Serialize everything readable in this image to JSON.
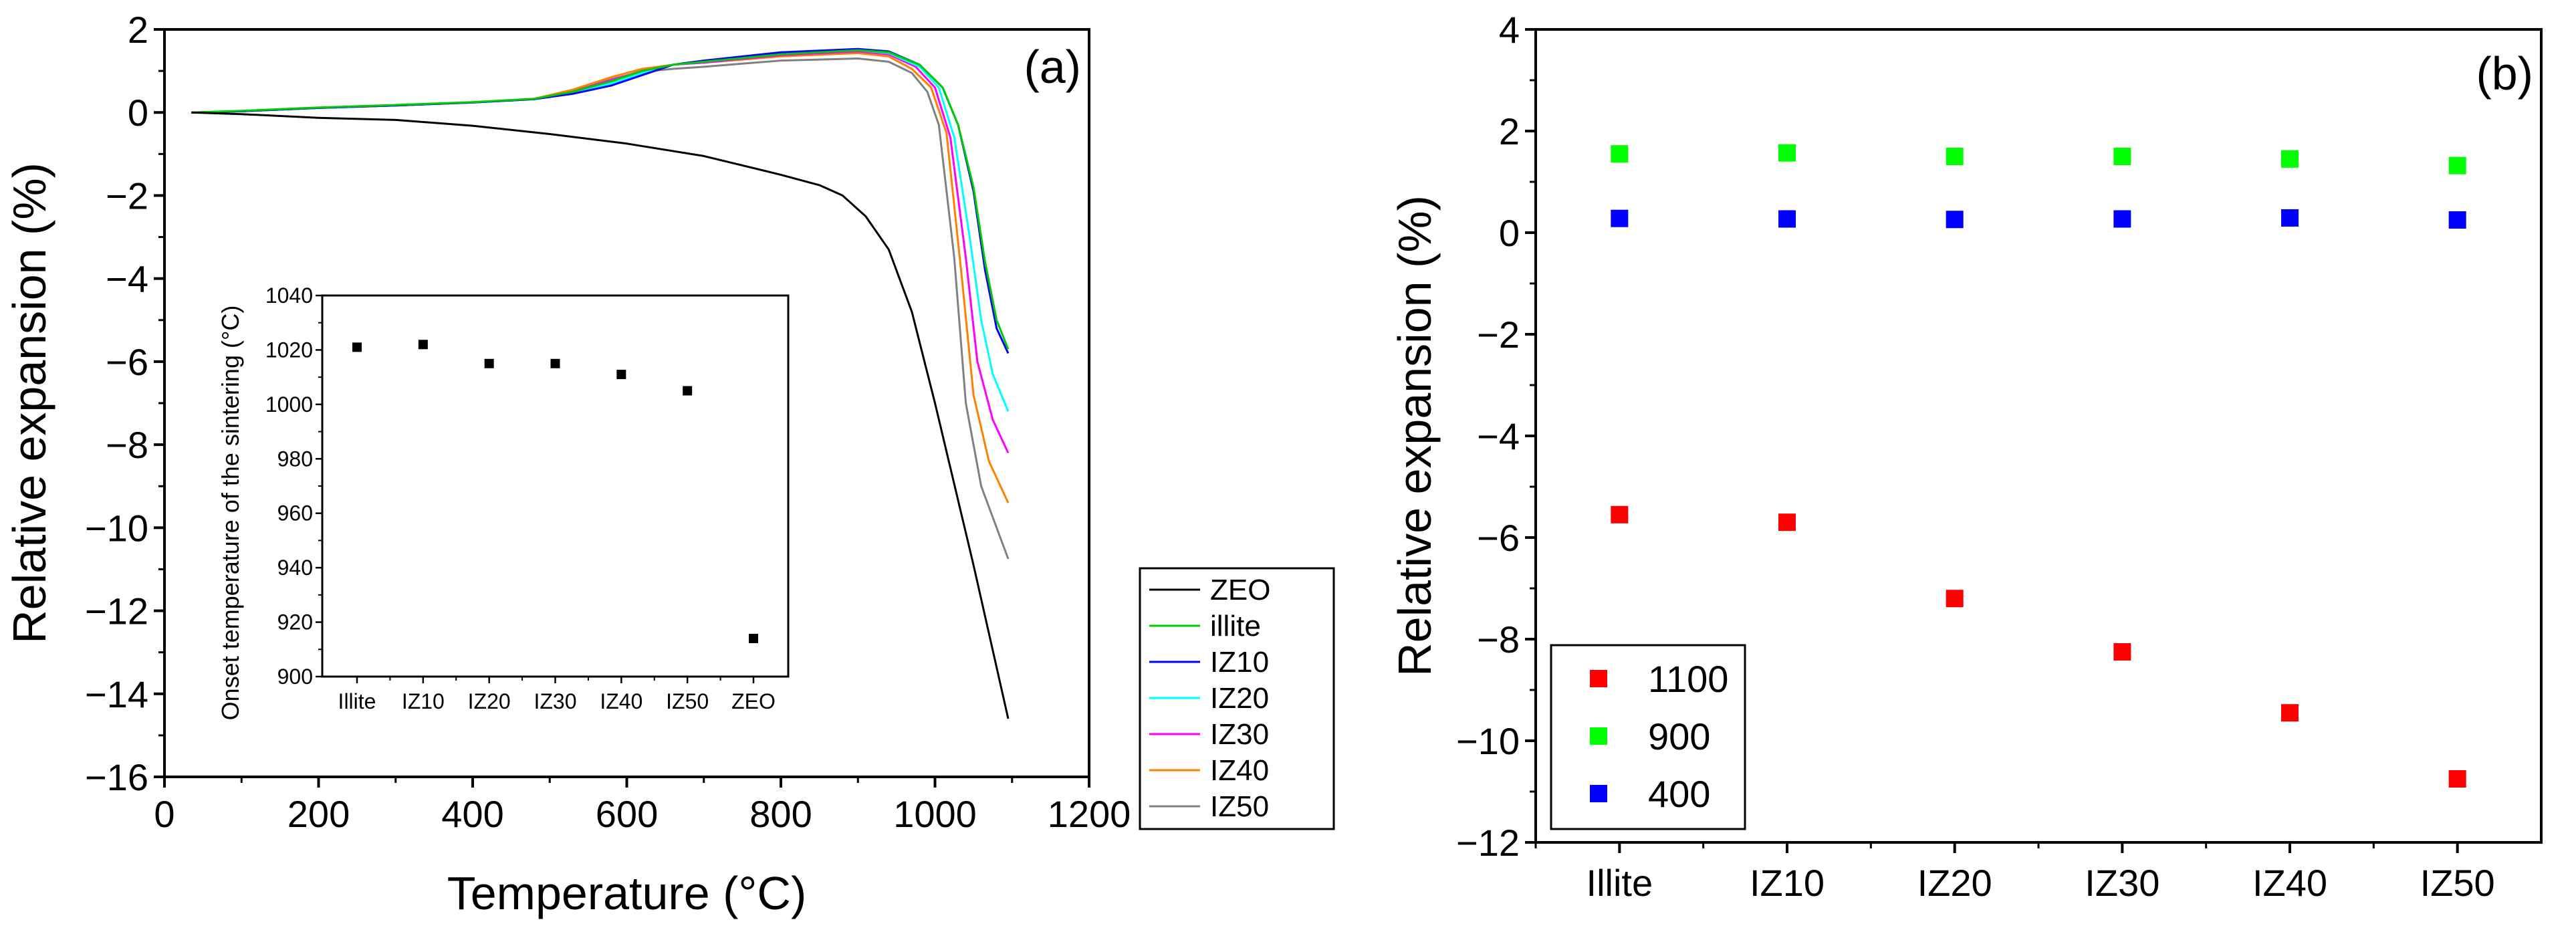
{
  "chart_data": [
    {
      "type": "line",
      "panel_label": "(a)",
      "xlabel": "Temperature (°C)",
      "ylabel": "Relative expansion (%)",
      "xlim": [
        0,
        1200
      ],
      "ylim": [
        -16,
        2
      ],
      "xticks": [
        0,
        200,
        400,
        600,
        800,
        1000,
        1200
      ],
      "yticks": [
        2,
        0,
        -2,
        -4,
        -6,
        -8,
        -10,
        -12,
        -14,
        -16
      ],
      "legend_position": "bottom-right outside",
      "series": [
        {
          "name": "ZEO",
          "color": "#000000",
          "points": [
            [
              35,
              0
            ],
            [
              100,
              -0.04
            ],
            [
              200,
              -0.13
            ],
            [
              300,
              -0.18
            ],
            [
              400,
              -0.32
            ],
            [
              500,
              -0.52
            ],
            [
              600,
              -0.75
            ],
            [
              700,
              -1.05
            ],
            [
              800,
              -1.5
            ],
            [
              850,
              -1.75
            ],
            [
              880,
              -2.0
            ],
            [
              910,
              -2.5
            ],
            [
              940,
              -3.3
            ],
            [
              970,
              -4.8
            ],
            [
              1000,
              -7.0
            ],
            [
              1050,
              -10.9
            ],
            [
              1095,
              -14.6
            ]
          ]
        },
        {
          "name": "illite",
          "color": "#00cc00",
          "points": [
            [
              35,
              0
            ],
            [
              100,
              0.04
            ],
            [
              200,
              0.12
            ],
            [
              300,
              0.18
            ],
            [
              400,
              0.25
            ],
            [
              480,
              0.33
            ],
            [
              530,
              0.5
            ],
            [
              580,
              0.75
            ],
            [
              620,
              1.0
            ],
            [
              660,
              1.15
            ],
            [
              700,
              1.22
            ],
            [
              800,
              1.4
            ],
            [
              900,
              1.5
            ],
            [
              940,
              1.45
            ],
            [
              980,
              1.15
            ],
            [
              1010,
              0.6
            ],
            [
              1030,
              -0.3
            ],
            [
              1050,
              -1.8
            ],
            [
              1065,
              -3.6
            ],
            [
              1080,
              -5.0
            ],
            [
              1095,
              -5.7
            ]
          ]
        },
        {
          "name": "IZ10",
          "color": "#0000ff",
          "points": [
            [
              35,
              0
            ],
            [
              100,
              0.03
            ],
            [
              200,
              0.11
            ],
            [
              300,
              0.17
            ],
            [
              400,
              0.24
            ],
            [
              480,
              0.32
            ],
            [
              530,
              0.45
            ],
            [
              580,
              0.65
            ],
            [
              620,
              0.9
            ],
            [
              660,
              1.15
            ],
            [
              700,
              1.25
            ],
            [
              800,
              1.45
            ],
            [
              900,
              1.53
            ],
            [
              940,
              1.47
            ],
            [
              980,
              1.15
            ],
            [
              1010,
              0.6
            ],
            [
              1030,
              -0.3
            ],
            [
              1050,
              -1.9
            ],
            [
              1065,
              -3.8
            ],
            [
              1080,
              -5.2
            ],
            [
              1095,
              -5.8
            ]
          ]
        },
        {
          "name": "IZ20",
          "color": "#00ffff",
          "points": [
            [
              35,
              0
            ],
            [
              100,
              0.03
            ],
            [
              200,
              0.11
            ],
            [
              300,
              0.17
            ],
            [
              400,
              0.24
            ],
            [
              480,
              0.32
            ],
            [
              530,
              0.48
            ],
            [
              580,
              0.7
            ],
            [
              620,
              0.95
            ],
            [
              660,
              1.15
            ],
            [
              700,
              1.22
            ],
            [
              800,
              1.42
            ],
            [
              900,
              1.5
            ],
            [
              940,
              1.43
            ],
            [
              980,
              1.1
            ],
            [
              1005,
              0.6
            ],
            [
              1025,
              -0.6
            ],
            [
              1045,
              -3.0
            ],
            [
              1060,
              -5.0
            ],
            [
              1075,
              -6.3
            ],
            [
              1095,
              -7.2
            ]
          ]
        },
        {
          "name": "IZ30",
          "color": "#ff00ff",
          "points": [
            [
              35,
              0
            ],
            [
              100,
              0.03
            ],
            [
              200,
              0.11
            ],
            [
              300,
              0.17
            ],
            [
              400,
              0.24
            ],
            [
              480,
              0.32
            ],
            [
              530,
              0.5
            ],
            [
              580,
              0.78
            ],
            [
              620,
              1.0
            ],
            [
              660,
              1.15
            ],
            [
              700,
              1.2
            ],
            [
              800,
              1.38
            ],
            [
              900,
              1.47
            ],
            [
              940,
              1.4
            ],
            [
              975,
              1.1
            ],
            [
              1000,
              0.6
            ],
            [
              1020,
              -0.6
            ],
            [
              1040,
              -3.5
            ],
            [
              1055,
              -6.0
            ],
            [
              1075,
              -7.4
            ],
            [
              1095,
              -8.2
            ]
          ]
        },
        {
          "name": "IZ40",
          "color": "#ff8000",
          "points": [
            [
              35,
              0
            ],
            [
              100,
              0.03
            ],
            [
              200,
              0.11
            ],
            [
              300,
              0.17
            ],
            [
              400,
              0.24
            ],
            [
              480,
              0.33
            ],
            [
              530,
              0.55
            ],
            [
              580,
              0.85
            ],
            [
              620,
              1.05
            ],
            [
              660,
              1.15
            ],
            [
              700,
              1.2
            ],
            [
              800,
              1.35
            ],
            [
              900,
              1.43
            ],
            [
              940,
              1.35
            ],
            [
              970,
              1.05
            ],
            [
              995,
              0.6
            ],
            [
              1015,
              -0.5
            ],
            [
              1035,
              -4.0
            ],
            [
              1050,
              -6.8
            ],
            [
              1070,
              -8.4
            ],
            [
              1095,
              -9.4
            ]
          ]
        },
        {
          "name": "IZ50",
          "color": "#808080",
          "points": [
            [
              35,
              0
            ],
            [
              100,
              0.03
            ],
            [
              200,
              0.11
            ],
            [
              300,
              0.17
            ],
            [
              400,
              0.24
            ],
            [
              480,
              0.32
            ],
            [
              530,
              0.52
            ],
            [
              580,
              0.8
            ],
            [
              620,
              0.98
            ],
            [
              660,
              1.05
            ],
            [
              700,
              1.1
            ],
            [
              800,
              1.25
            ],
            [
              900,
              1.3
            ],
            [
              940,
              1.22
            ],
            [
              970,
              0.95
            ],
            [
              990,
              0.5
            ],
            [
              1005,
              -0.3
            ],
            [
              1025,
              -3.5
            ],
            [
              1040,
              -7.0
            ],
            [
              1060,
              -9.0
            ],
            [
              1095,
              -10.75
            ]
          ]
        }
      ]
    },
    {
      "type": "scatter",
      "panel_label": "inset",
      "xlabel": "",
      "ylabel": "Onset temperature of the sintering (°C)",
      "categories": [
        "Illite",
        "IZ10",
        "IZ20",
        "IZ30",
        "IZ40",
        "IZ50",
        "ZEO"
      ],
      "values": [
        1021,
        1022,
        1015,
        1015,
        1011,
        1005,
        914
      ],
      "ylim": [
        900,
        1040
      ],
      "yticks": [
        900,
        920,
        940,
        960,
        980,
        1000,
        1020,
        1040
      ],
      "color": "#000000"
    },
    {
      "type": "scatter",
      "panel_label": "(b)",
      "xlabel": "",
      "ylabel": "Relative expansion (%)",
      "categories": [
        "Illite",
        "IZ10",
        "IZ20",
        "IZ30",
        "IZ40",
        "IZ50"
      ],
      "ylim": [
        -12,
        4
      ],
      "yticks": [
        4,
        2,
        0,
        -2,
        -4,
        -6,
        -8,
        -10,
        -12
      ],
      "legend_position": "bottom-left",
      "series": [
        {
          "name": "1100",
          "color": "#ff0000",
          "values": [
            -5.55,
            -5.7,
            -7.2,
            -8.25,
            -9.45,
            -10.75
          ]
        },
        {
          "name": "900",
          "color": "#00ff00",
          "values": [
            1.55,
            1.57,
            1.5,
            1.5,
            1.45,
            1.32
          ]
        },
        {
          "name": "400",
          "color": "#0000ff",
          "values": [
            0.28,
            0.27,
            0.26,
            0.27,
            0.29,
            0.25
          ]
        }
      ]
    }
  ]
}
